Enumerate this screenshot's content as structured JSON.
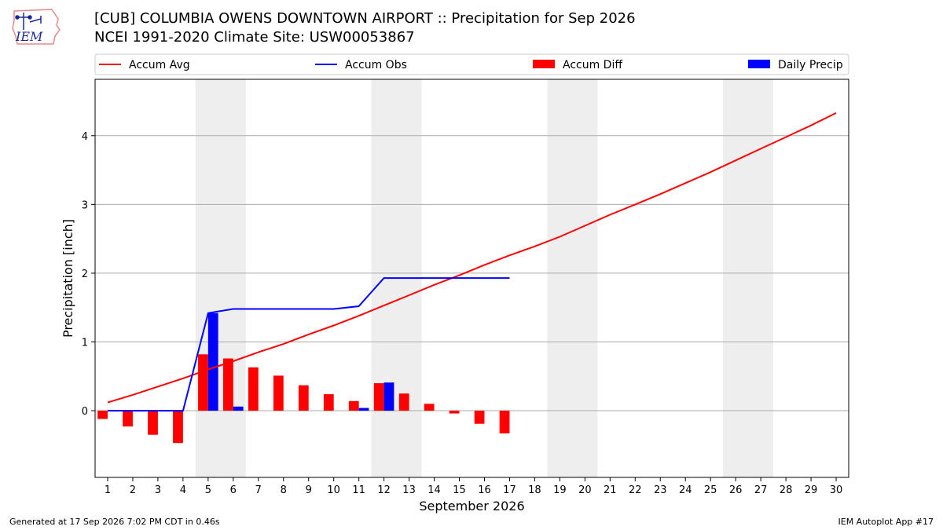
{
  "header": {
    "title_line1": "[CUB] COLUMBIA OWENS DOWNTOWN AIRPORT :: Precipitation for Sep 2026",
    "title_line2": "NCEI 1991-2020 Climate Site: USW00053867",
    "logo_text": "IEM"
  },
  "footer": {
    "generated": "Generated at 17 Sep 2026 7:02 PM CDT in 0.46s",
    "app": "IEM Autoplot App #17"
  },
  "colors": {
    "accum_avg": "#ff0000",
    "accum_obs": "#0000ff",
    "accum_diff": "#ff0000",
    "daily_precip": "#0000ff",
    "weekend_shade": "#eeeeee",
    "grid": "#aaaaaa"
  },
  "chart_data": {
    "type": "bar",
    "xlabel": "September 2026",
    "ylabel": "Precipitation [inch]",
    "ylim": [
      -0.97,
      4.82
    ],
    "yticks": [
      0,
      1,
      2,
      3,
      4
    ],
    "grid": true,
    "legend_position": "top",
    "legend": [
      "Accum Avg",
      "Accum Obs",
      "Accum Diff",
      "Daily Precip"
    ],
    "weekend_shading": [
      [
        5,
        6
      ],
      [
        12,
        13
      ],
      [
        19,
        20
      ],
      [
        26,
        27
      ]
    ],
    "x": [
      1,
      2,
      3,
      4,
      5,
      6,
      7,
      8,
      9,
      10,
      11,
      12,
      13,
      14,
      15,
      16,
      17,
      18,
      19,
      20,
      21,
      22,
      23,
      24,
      25,
      26,
      27,
      28,
      29,
      30
    ],
    "series": [
      {
        "name": "Accum Avg",
        "kind": "line",
        "x": [
          1,
          2,
          3,
          4,
          5,
          6,
          7,
          8,
          9,
          10,
          11,
          12,
          13,
          14,
          15,
          16,
          17,
          18,
          19,
          20,
          21,
          22,
          23,
          24,
          25,
          26,
          27,
          28,
          29,
          30
        ],
        "values": [
          0.12,
          0.23,
          0.35,
          0.47,
          0.6,
          0.72,
          0.85,
          0.97,
          1.11,
          1.24,
          1.38,
          1.53,
          1.68,
          1.83,
          1.97,
          2.12,
          2.26,
          2.39,
          2.53,
          2.69,
          2.85,
          3.0,
          3.15,
          3.31,
          3.47,
          3.64,
          3.81,
          3.98,
          4.15,
          4.33
        ]
      },
      {
        "name": "Accum Obs",
        "kind": "line",
        "x": [
          1,
          2,
          3,
          4,
          5,
          6,
          7,
          8,
          9,
          10,
          11,
          12,
          13,
          14,
          15,
          16,
          17
        ],
        "values": [
          0.0,
          0.0,
          0.0,
          0.0,
          1.42,
          1.48,
          1.48,
          1.48,
          1.48,
          1.48,
          1.52,
          1.93,
          1.93,
          1.93,
          1.93,
          1.93,
          1.93
        ]
      },
      {
        "name": "Accum Diff",
        "kind": "bar",
        "x": [
          1,
          2,
          3,
          4,
          5,
          6,
          7,
          8,
          9,
          10,
          11,
          12,
          13,
          14,
          15,
          16,
          17
        ],
        "values": [
          -0.12,
          -0.23,
          -0.35,
          -0.47,
          0.82,
          0.76,
          0.63,
          0.51,
          0.37,
          0.24,
          0.14,
          0.4,
          0.25,
          0.1,
          -0.04,
          -0.19,
          -0.33
        ]
      },
      {
        "name": "Daily Precip",
        "kind": "bar",
        "x": [
          1,
          2,
          3,
          4,
          5,
          6,
          7,
          8,
          9,
          10,
          11,
          12,
          13,
          14,
          15,
          16,
          17
        ],
        "values": [
          0.0,
          0.0,
          0.0,
          0.0,
          1.42,
          0.06,
          0.0,
          0.0,
          0.0,
          0.0,
          0.04,
          0.41,
          0.0,
          0.0,
          0.0,
          0.0,
          0.0
        ]
      }
    ]
  }
}
